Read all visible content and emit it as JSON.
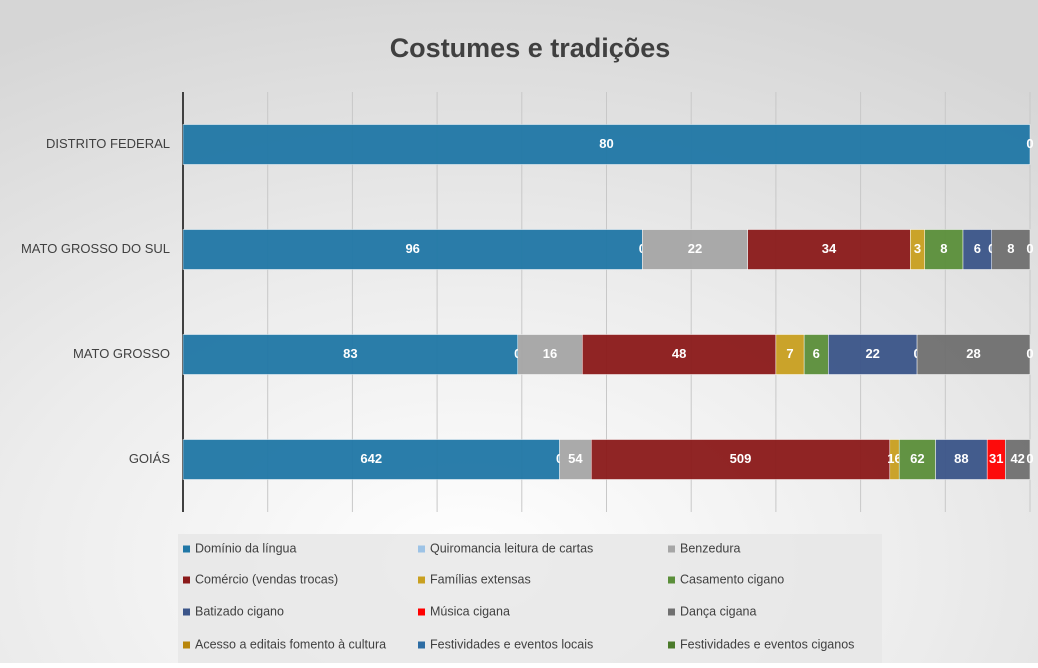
{
  "chart_data": {
    "type": "stacked-bar-100",
    "title": "Costumes e tradições",
    "categories": [
      "DISTRITO FEDERAL",
      "MATO GROSSO DO SUL",
      "MATO GROSSO",
      "GOIÁS"
    ],
    "xlim": [
      0,
      100
    ],
    "xticks": [
      0,
      10,
      20,
      30,
      40,
      50,
      60,
      70,
      80,
      90,
      100
    ],
    "grid": true,
    "series": [
      {
        "name": "Domínio da língua",
        "color": "#2077a6",
        "values": [
          80,
          96,
          83,
          642
        ]
      },
      {
        "name": "Quiromancia leitura de cartas",
        "color": "#9dc3e6",
        "values": [
          null,
          0,
          0,
          0
        ]
      },
      {
        "name": "Benzedura",
        "color": "#a6a6a6",
        "values": [
          null,
          22,
          16,
          54
        ]
      },
      {
        "name": "Comércio (vendas trocas)",
        "color": "#8b1a1a",
        "values": [
          null,
          34,
          48,
          509
        ]
      },
      {
        "name": "Famílias extensas",
        "color": "#c9a020",
        "values": [
          null,
          3,
          7,
          16
        ]
      },
      {
        "name": "Casamento cigano",
        "color": "#5b8f3a",
        "values": [
          null,
          8,
          6,
          62
        ]
      },
      {
        "name": "Batizado cigano",
        "color": "#3b5589",
        "values": [
          null,
          6,
          22,
          88
        ]
      },
      {
        "name": "Música cigana",
        "color": "#ff0000",
        "values": [
          null,
          0,
          0,
          31
        ]
      },
      {
        "name": "Dança cigana",
        "color": "#707070",
        "values": [
          null,
          8,
          28,
          42
        ]
      },
      {
        "name": "Acesso a editais fomento à cultura",
        "color": "#b8860b",
        "values": [
          0,
          0,
          0,
          0
        ]
      },
      {
        "name": "Festividades e eventos locais",
        "color": "#2e6da4",
        "values": [
          null,
          null,
          null,
          null
        ]
      },
      {
        "name": "Festividades e eventos ciganos",
        "color": "#4a7a2a",
        "values": [
          null,
          null,
          null,
          null
        ]
      }
    ]
  }
}
